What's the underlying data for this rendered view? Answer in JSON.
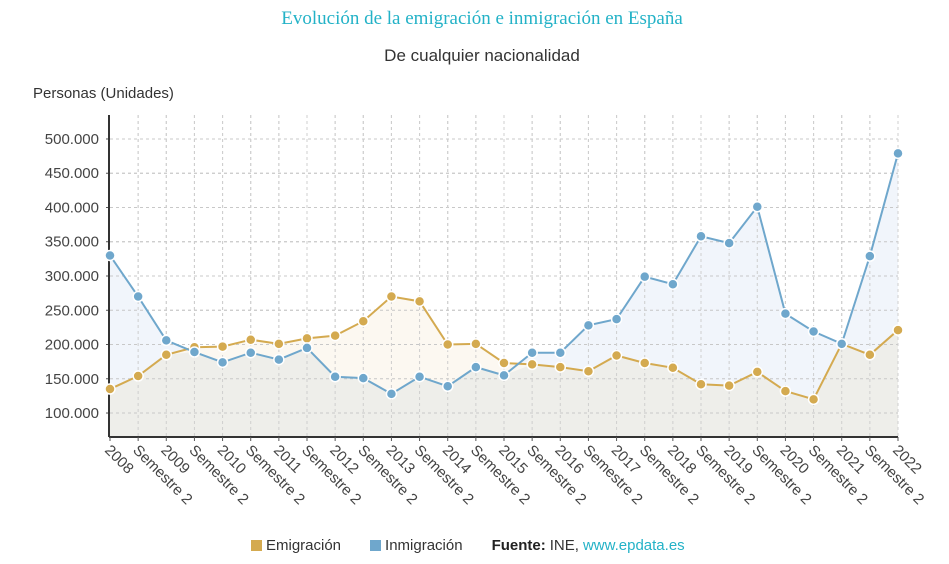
{
  "chart_data": {
    "type": "line",
    "title": "Evolución de la emigración e inmigración en España",
    "subtitle": "De cualquier nacionalidad",
    "ylabel": "Personas (Unidades)",
    "xlabel": "",
    "ylim": [
      65000,
      535000
    ],
    "yticks": [
      100000,
      150000,
      200000,
      250000,
      300000,
      350000,
      400000,
      450000,
      500000
    ],
    "ytick_labels": [
      "100.000",
      "150.000",
      "200.000",
      "250.000",
      "300.000",
      "350.000",
      "400.000",
      "450.000",
      "500.000"
    ],
    "grid": true,
    "area_fill": true,
    "categories": [
      "2008",
      "Semestre 2",
      "2009",
      "Semestre 2",
      "2010",
      "Semestre 2",
      "2011",
      "Semestre 2",
      "2012",
      "Semestre 2",
      "2013",
      "Semestre 2",
      "2014",
      "Semestre 2",
      "2015",
      "Semestre 2",
      "2016",
      "Semestre 2",
      "2017",
      "Semestre 2",
      "2018",
      "Semestre 2",
      "2019",
      "Semestre 2",
      "2020",
      "Semestre 2",
      "2021",
      "Semestre 2",
      "2022"
    ],
    "series": [
      {
        "name": "Emigración",
        "color": "#d4aa50",
        "fill": "#fbf7ee",
        "values": [
          135000,
          154000,
          185000,
          196000,
          197000,
          207000,
          201000,
          209000,
          213000,
          234000,
          270000,
          263000,
          200000,
          201000,
          173000,
          171000,
          167000,
          161000,
          184000,
          173000,
          166000,
          142000,
          140000,
          160000,
          132000,
          120000,
          201000,
          185000,
          221000
        ]
      },
      {
        "name": "Inmigración",
        "color": "#6fa7cc",
        "fill": "#eef3fa",
        "values": [
          330000,
          270000,
          206000,
          189000,
          174000,
          188000,
          178000,
          195000,
          153000,
          151000,
          128000,
          153000,
          139000,
          167000,
          155000,
          188000,
          188000,
          228000,
          237000,
          299000,
          288000,
          358000,
          348000,
          401000,
          245000,
          219000,
          201000,
          329000,
          479000
        ]
      }
    ],
    "legend_position": "bottom"
  },
  "legend": {
    "items": [
      {
        "label": "Emigración",
        "color": "#d4aa50"
      },
      {
        "label": "Inmigración",
        "color": "#6fa7cc"
      }
    ],
    "source_label": "Fuente:",
    "source_name": "INE,",
    "source_link": "www.epdata.es"
  }
}
